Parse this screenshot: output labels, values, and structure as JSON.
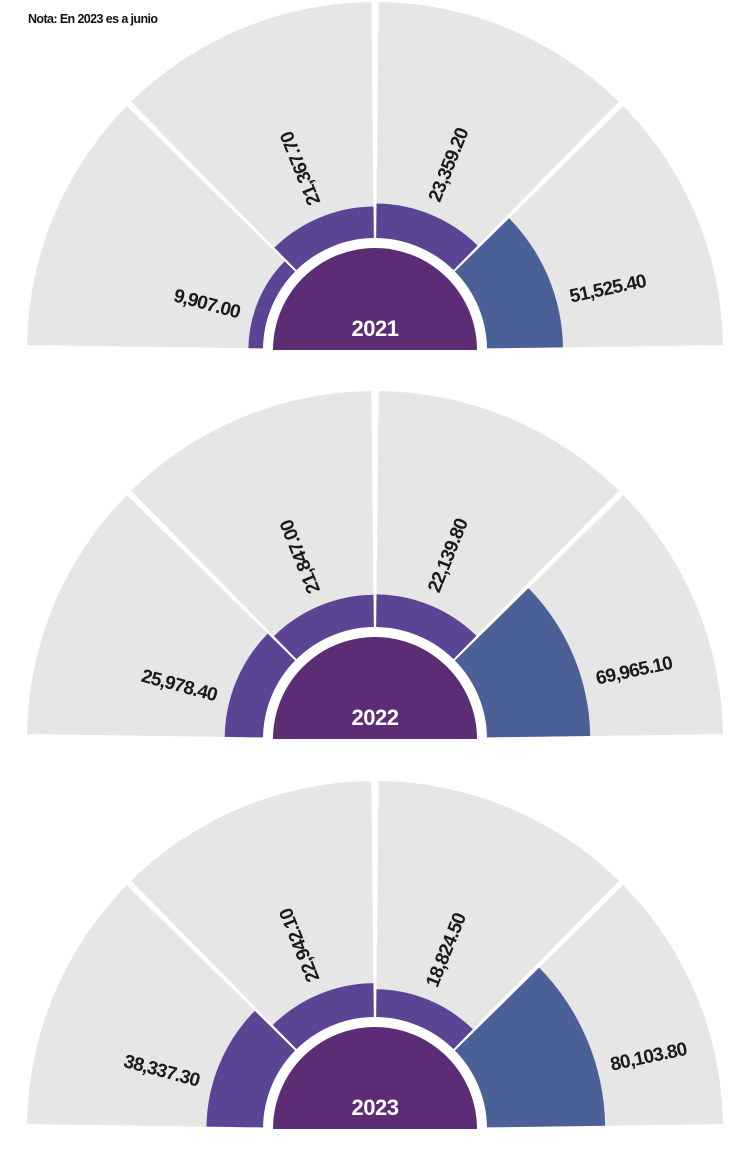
{
  "note": "Nota: En 2023 es a junio",
  "colors": {
    "background_wedge": "#e6e6e6",
    "hub": "#5c2d74",
    "purple_bar": "#5c4494",
    "blue_bar": "#4a6096",
    "label": "#1a1a1a",
    "hub_text": "#ffffff"
  },
  "chart_data": [
    {
      "type": "radial-bar",
      "year": "2021",
      "values": [
        9907.0,
        21367.7,
        23359.2,
        51525.4
      ],
      "labels": [
        "9,907.00",
        "21,367.70",
        "23,359.20",
        "51,525.40"
      ]
    },
    {
      "type": "radial-bar",
      "year": "2022",
      "values": [
        25978.4,
        21847.0,
        22139.8,
        69965.1
      ],
      "labels": [
        "25,978.40",
        "21,847.00",
        "22,139.80",
        "69,965.10"
      ]
    },
    {
      "type": "radial-bar",
      "year": "2023",
      "values": [
        38337.3,
        22942.1,
        18824.5,
        80103.8
      ],
      "labels": [
        "38,337.30",
        "22,942.10",
        "18,824.50",
        "80,103.80"
      ]
    }
  ]
}
